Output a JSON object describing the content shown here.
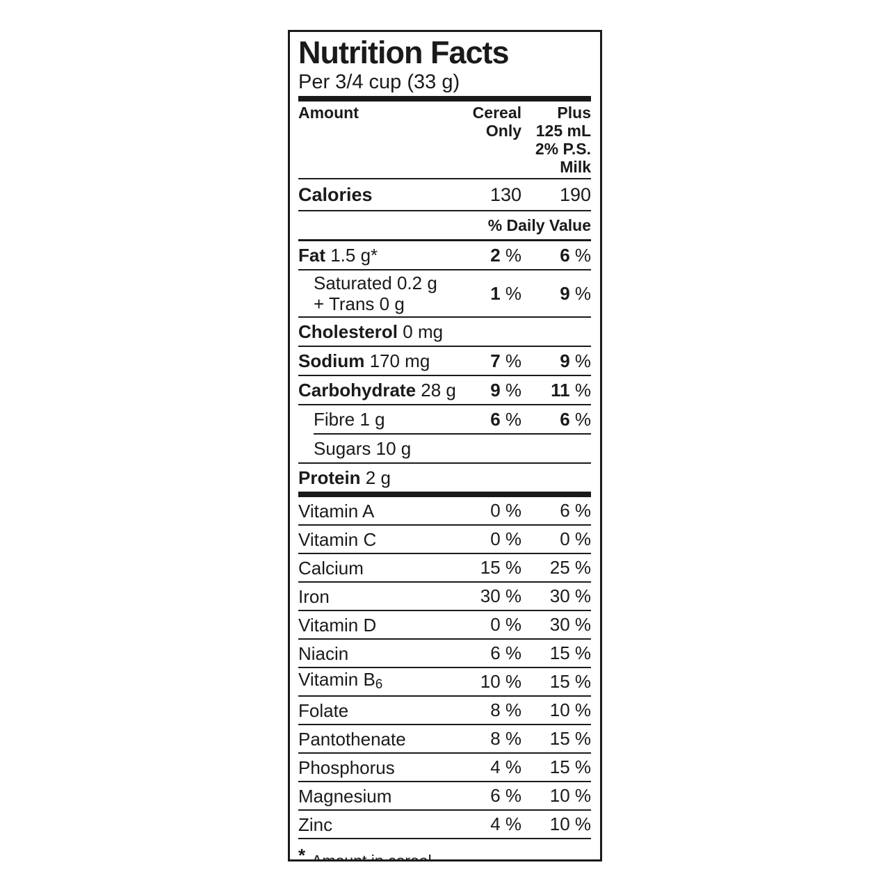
{
  "label": {
    "title": "Nutrition Facts",
    "serving": "Per 3/4 cup (33 g)",
    "unit": "%",
    "columns": {
      "amount": "Amount",
      "cereal_lines": [
        "Cereal",
        "Only"
      ],
      "milk_lines": [
        "Plus",
        "125 mL",
        "2% P.S.",
        "Milk"
      ]
    },
    "calories": {
      "label": "Calories",
      "cereal": "130",
      "milk": "190"
    },
    "daily_value_header": "% Daily Value",
    "nutrients": [
      {
        "name": "Fat",
        "amount": "1.5 g*",
        "cereal": "2",
        "milk": "6",
        "bold_values": true
      },
      {
        "lines": [
          "Saturated 0.2 g",
          "+ Trans 0 g"
        ],
        "indent": true,
        "cereal": "1",
        "milk": "9",
        "bold_values": true,
        "tall": true
      },
      {
        "name": "Cholesterol",
        "amount": "0 mg"
      },
      {
        "name": "Sodium",
        "amount": "170 mg",
        "cereal": "7",
        "milk": "9",
        "bold_values": true
      },
      {
        "name": "Carbohydrate",
        "amount": "28 g",
        "cereal": "9",
        "milk": "11",
        "bold_values": true
      },
      {
        "amount": "Fibre 1 g",
        "indent": true,
        "cereal": "6",
        "milk": "6",
        "bold_values": true
      },
      {
        "amount": "Sugars 10 g",
        "indent": true,
        "sep_indent": true
      },
      {
        "name": "Protein",
        "amount": "2 g"
      }
    ],
    "micronutrients": [
      {
        "label": "Vitamin A",
        "cereal": "0",
        "milk": "6"
      },
      {
        "label": "Vitamin C",
        "cereal": "0",
        "milk": "0"
      },
      {
        "label": "Calcium",
        "cereal": "15",
        "milk": "25"
      },
      {
        "label": "Iron",
        "cereal": "30",
        "milk": "30"
      },
      {
        "label": "Vitamin D",
        "cereal": "0",
        "milk": "30"
      },
      {
        "label": "Niacin",
        "cereal": "6",
        "milk": "15"
      },
      {
        "label": "Vitamin B",
        "sub": "6",
        "cereal": "10",
        "milk": "15"
      },
      {
        "label": "Folate",
        "cereal": "8",
        "milk": "10"
      },
      {
        "label": "Pantothenate",
        "cereal": "8",
        "milk": "15"
      },
      {
        "label": "Phosphorus",
        "cereal": "4",
        "milk": "15"
      },
      {
        "label": "Magnesium",
        "cereal": "6",
        "milk": "10"
      },
      {
        "label": "Zinc",
        "cereal": "4",
        "milk": "10"
      }
    ],
    "footnote_marker": "*",
    "footnote": "Amount in cereal"
  }
}
